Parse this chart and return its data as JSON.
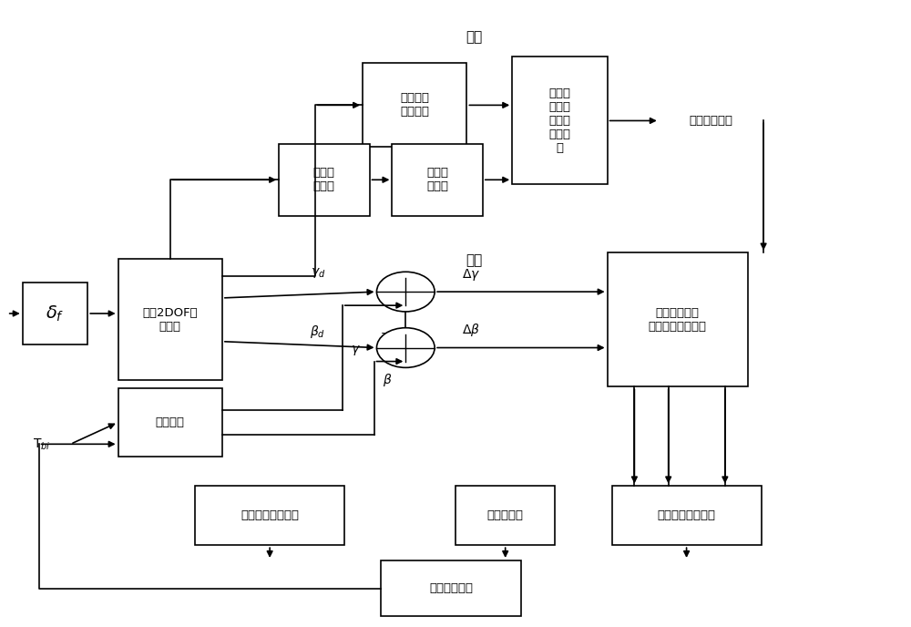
{
  "bg_color": "#ffffff",
  "upper_label": "上层",
  "lower_label": "下层",
  "road_label": "路面附着系数",
  "delta_f_text": "$\\delta_f$",
  "tbi_text": "T$_{bi}$",
  "linear2dof_text": "线性2DOF车\n辆模型",
  "car_text": "被控汽车",
  "vs_text": "车辆状态\n参数获取",
  "ls_text": "最小二\n乘法路\n面附着\n系数估\n计",
  "bt_text": "刷子轮\n胎模型",
  "kf_text": "卡尔曼\n滤波器",
  "stab_text": "稳定性判据及\n路面附着系数识别",
  "cm_text": "质心侧偏觓控制器",
  "coord_text": "协调控制器",
  "yr_text": "横摇觓速度控制器",
  "brake_text": "制动力矩分配"
}
